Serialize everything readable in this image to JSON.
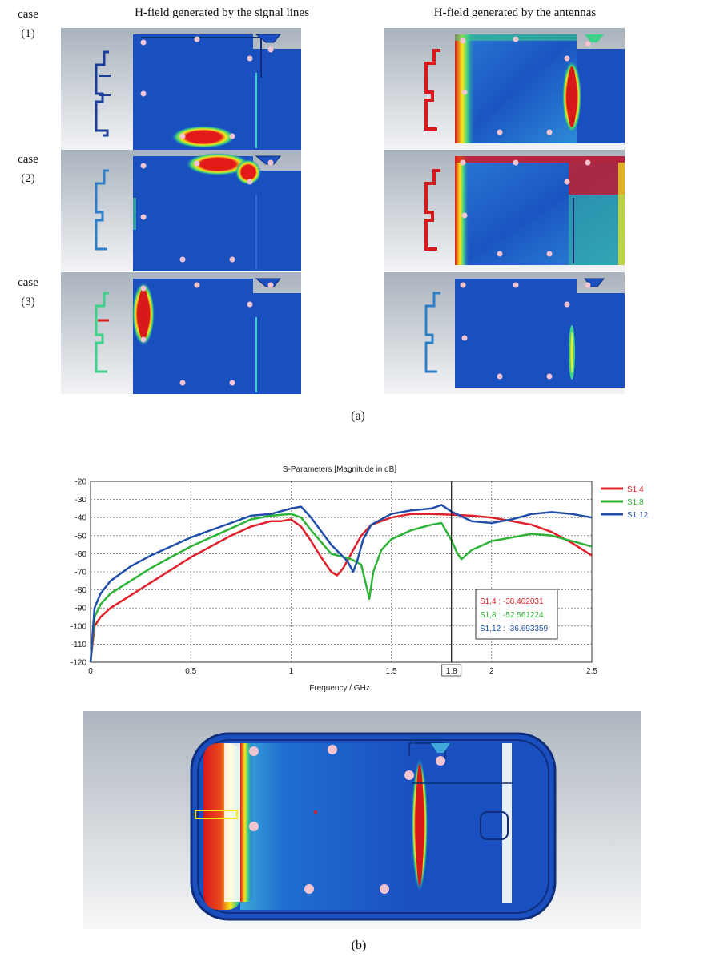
{
  "figure_a": {
    "col_titles": [
      "H-field generated by the signal lines",
      "H-field generated by the antennas"
    ],
    "cases": [
      {
        "word": "case",
        "num": "(1)"
      },
      {
        "word": "case",
        "num": "(2)"
      },
      {
        "word": "case",
        "num": "(3)"
      }
    ],
    "caption": "(a)"
  },
  "figure_b": {
    "caption": "(b)"
  },
  "chart_data": {
    "type": "line",
    "title": "S-Parameters [Magnitude in dB]",
    "xlabel": "Frequency / GHz",
    "ylabel": "",
    "xlim": [
      0,
      2.5
    ],
    "ylim": [
      -120,
      -20
    ],
    "x_ticks": [
      "0",
      "0.5",
      "1",
      "1.5",
      "2",
      "2.5"
    ],
    "y_ticks": [
      "-20",
      "-30",
      "-40",
      "-50",
      "-60",
      "-70",
      "-80",
      "-90",
      "-100",
      "-110",
      "-120"
    ],
    "grid": true,
    "legend_position": "right",
    "marker_x": 1.8,
    "marker_label": "1.8",
    "marker_readout": [
      "S1,4 : -38.402031",
      "S1,8 : -52.561224",
      "S1,12 : -36.693359"
    ],
    "series": [
      {
        "name": "S1,4",
        "color": "#e0202a",
        "x": [
          0.0,
          0.02,
          0.05,
          0.1,
          0.2,
          0.3,
          0.4,
          0.5,
          0.6,
          0.7,
          0.8,
          0.9,
          0.95,
          1.0,
          1.05,
          1.1,
          1.15,
          1.2,
          1.23,
          1.26,
          1.3,
          1.35,
          1.4,
          1.5,
          1.6,
          1.7,
          1.8,
          1.9,
          2.0,
          2.1,
          2.2,
          2.3,
          2.4,
          2.5
        ],
        "y": [
          -120,
          -100,
          -95,
          -90,
          -83,
          -76,
          -69,
          -62,
          -56,
          -50,
          -45,
          -42,
          -42,
          -41,
          -45,
          -53,
          -62,
          -70,
          -72,
          -68,
          -60,
          -50,
          -44,
          -40,
          -38,
          -38,
          -38.4,
          -39,
          -40,
          -42,
          -44,
          -48,
          -54,
          -61
        ]
      },
      {
        "name": "S1,8",
        "color": "#2db336",
        "x": [
          0.0,
          0.02,
          0.05,
          0.1,
          0.2,
          0.3,
          0.4,
          0.5,
          0.6,
          0.7,
          0.8,
          0.9,
          1.0,
          1.05,
          1.1,
          1.2,
          1.3,
          1.35,
          1.38,
          1.39,
          1.41,
          1.45,
          1.5,
          1.6,
          1.7,
          1.75,
          1.8,
          1.83,
          1.85,
          1.9,
          2.0,
          2.1,
          2.2,
          2.3,
          2.4,
          2.5
        ],
        "y": [
          -120,
          -95,
          -88,
          -82,
          -75,
          -68,
          -62,
          -56,
          -51,
          -46,
          -41,
          -39,
          -38,
          -40,
          -47,
          -60,
          -63,
          -66,
          -80,
          -85,
          -70,
          -58,
          -52,
          -47,
          -44,
          -43,
          -52.5,
          -60,
          -63,
          -58,
          -53,
          -51,
          -49,
          -50,
          -53,
          -56
        ]
      },
      {
        "name": "S1,12",
        "color": "#1f4fa8",
        "x": [
          0.0,
          0.02,
          0.05,
          0.1,
          0.2,
          0.3,
          0.4,
          0.5,
          0.6,
          0.7,
          0.8,
          0.9,
          1.0,
          1.05,
          1.1,
          1.2,
          1.28,
          1.31,
          1.33,
          1.36,
          1.4,
          1.5,
          1.6,
          1.7,
          1.75,
          1.8,
          1.9,
          2.0,
          2.1,
          2.2,
          2.3,
          2.4,
          2.5
        ],
        "y": [
          -120,
          -90,
          -82,
          -75,
          -67,
          -61,
          -56,
          -51,
          -47,
          -43,
          -39,
          -38,
          -35,
          -34,
          -40,
          -55,
          -64,
          -70,
          -64,
          -52,
          -44,
          -38,
          -36,
          -35,
          -33,
          -36.7,
          -42,
          -43,
          -41,
          -38,
          -37,
          -38,
          -40
        ]
      }
    ]
  }
}
